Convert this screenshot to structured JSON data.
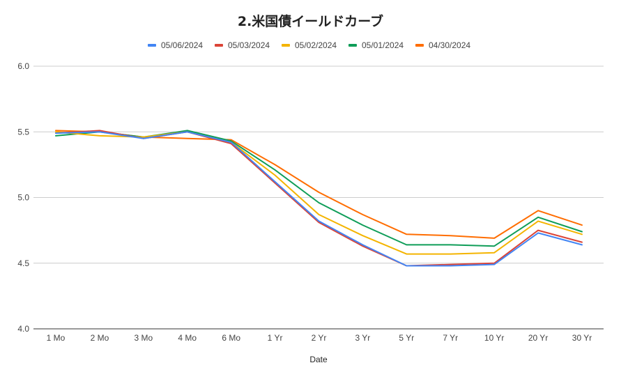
{
  "chart_data": {
    "type": "line",
    "title": "2.米国債イールドカーブ",
    "xlabel": "Date",
    "ylabel": "",
    "ylim": [
      4.0,
      6.0
    ],
    "yticks": [
      "4.0",
      "4.5",
      "5.0",
      "5.5",
      "6.0"
    ],
    "ytick_values": [
      4.0,
      4.5,
      5.0,
      5.5,
      6.0
    ],
    "grid": true,
    "legend_position": "top",
    "categories": [
      "1 Mo",
      "2 Mo",
      "3 Mo",
      "4 Mo",
      "6 Mo",
      "1 Yr",
      "2 Yr",
      "3 Yr",
      "5 Yr",
      "7 Yr",
      "10 Yr",
      "20 Yr",
      "30 Yr"
    ],
    "series": [
      {
        "name": "05/06/2024",
        "color": "#4285f4",
        "values": [
          5.49,
          5.5,
          5.45,
          5.5,
          5.42,
          5.12,
          4.82,
          4.64,
          4.48,
          4.48,
          4.49,
          4.73,
          4.64
        ]
      },
      {
        "name": "05/03/2024",
        "color": "#db4437",
        "values": [
          5.49,
          5.51,
          5.45,
          5.5,
          5.41,
          5.11,
          4.81,
          4.63,
          4.48,
          4.49,
          4.5,
          4.75,
          4.66
        ]
      },
      {
        "name": "05/02/2024",
        "color": "#f4b400",
        "values": [
          5.5,
          5.47,
          5.46,
          5.5,
          5.42,
          5.17,
          4.87,
          4.71,
          4.57,
          4.57,
          4.58,
          4.82,
          4.72
        ]
      },
      {
        "name": "05/01/2024",
        "color": "#0f9d58",
        "values": [
          5.47,
          5.5,
          5.46,
          5.51,
          5.43,
          5.21,
          4.96,
          4.79,
          4.64,
          4.64,
          4.63,
          4.85,
          4.74
        ]
      },
      {
        "name": "04/30/2024",
        "color": "#ff6d01",
        "values": [
          5.51,
          5.5,
          5.46,
          5.45,
          5.44,
          5.25,
          5.04,
          4.87,
          4.72,
          4.71,
          4.69,
          4.9,
          4.79
        ]
      }
    ]
  }
}
